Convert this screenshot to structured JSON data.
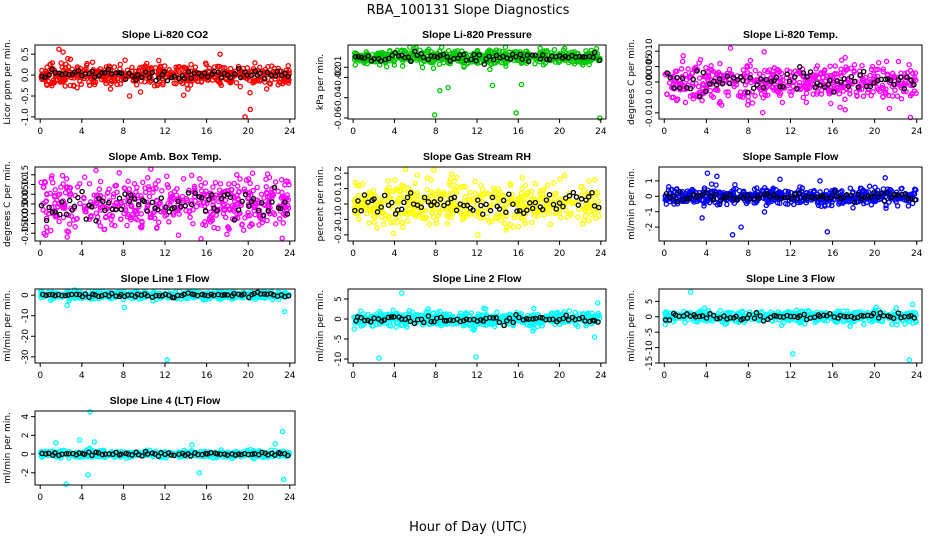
{
  "figure": {
    "title": "RBA_100131  Slope Diagnostics",
    "xlabel": "Hour of Day (UTC)"
  },
  "chart_data": [
    {
      "type": "scatter",
      "title": "Slope Li-820 CO2",
      "ylabel": "Licor ppm per min.",
      "color": "#ff0000",
      "xlim": [
        -0.5,
        24.5
      ],
      "ylim": [
        -1.05,
        0.72
      ],
      "xticks": [
        0,
        4,
        8,
        12,
        16,
        20,
        24
      ],
      "yticks": [
        -1.0,
        -0.5,
        0.0,
        0.5
      ],
      "ytick_labels": [
        "-1.0",
        "-0.5",
        "0.0",
        "0.5"
      ],
      "center": 0.0,
      "spread": 0.12,
      "outliers": [
        [
          1.8,
          0.62
        ],
        [
          2.2,
          0.55
        ],
        [
          17.3,
          0.5
        ],
        [
          19.7,
          -1.0
        ],
        [
          20.2,
          -0.82
        ],
        [
          2.9,
          0.38
        ],
        [
          11.4,
          0.35
        ],
        [
          13.8,
          -0.48
        ],
        [
          8.6,
          -0.5
        ]
      ]
    },
    {
      "type": "scatter",
      "title": "Slope Li-820 Pressure",
      "ylabel": "kPa per min.",
      "color": "#00c800",
      "xlim": [
        -0.5,
        24.5
      ],
      "ylim": [
        -0.061,
        0.012
      ],
      "xticks": [
        0,
        4,
        8,
        12,
        16,
        20,
        24
      ],
      "yticks": [
        -0.06,
        -0.04,
        -0.02,
        -0.01
      ],
      "ytick_labels": [
        "-0.06",
        "-0.04",
        "-0.02",
        "-0.01"
      ],
      "center": 0.0,
      "spread": 0.004,
      "outliers": [
        [
          7.9,
          -0.057
        ],
        [
          9.2,
          -0.03
        ],
        [
          15.8,
          -0.055
        ],
        [
          16.3,
          -0.027
        ],
        [
          23.9,
          -0.06
        ],
        [
          13.5,
          -0.028
        ],
        [
          8.4,
          -0.033
        ]
      ]
    },
    {
      "type": "scatter",
      "title": "Slope Li-820 Temp.",
      "ylabel": "degrees C per min.",
      "color": "#ff00ff",
      "xlim": [
        -0.5,
        24.5
      ],
      "ylim": [
        -0.012,
        0.012
      ],
      "xticks": [
        0,
        4,
        8,
        12,
        16,
        20,
        24
      ],
      "yticks": [
        -0.01,
        0.0,
        0.005,
        0.01
      ],
      "ytick_labels": [
        "-0.010",
        "0.000",
        "0.005",
        "0.010"
      ],
      "center": 0.0,
      "spread": 0.003,
      "outliers": [
        [
          6.3,
          0.011
        ],
        [
          1.8,
          0.0085
        ],
        [
          23.4,
          -0.0115
        ],
        [
          9.5,
          0.0098
        ],
        [
          17.2,
          -0.009
        ]
      ]
    },
    {
      "type": "scatter",
      "title": "Slope Amb. Box Temp.",
      "ylabel": "degrees C per min.",
      "color": "#ff00ff",
      "xlim": [
        -0.5,
        24.5
      ],
      "ylim": [
        -0.19,
        0.19
      ],
      "xticks": [
        0,
        4,
        8,
        12,
        16,
        20,
        24
      ],
      "yticks": [
        -0.15,
        -0.1,
        -0.05,
        0.0,
        0.05,
        0.1,
        0.15
      ],
      "ytick_labels": [
        "-0.15",
        "-0.10",
        "-0.05",
        "0.00",
        "0.05",
        "0.10",
        "0.15"
      ],
      "center": 0.0,
      "spread": 0.065,
      "outliers": [
        [
          7.6,
          0.16
        ],
        [
          2.6,
          -0.17
        ],
        [
          18.9,
          0.15
        ],
        [
          13.3,
          -0.16
        ]
      ]
    },
    {
      "type": "scatter",
      "title": "Slope Gas Stream RH",
      "ylabel": "percent per min.",
      "color": "#ffff00",
      "xlim": [
        -0.5,
        24.5
      ],
      "ylim": [
        -0.24,
        0.24
      ],
      "xticks": [
        0,
        4,
        8,
        12,
        16,
        20,
        24
      ],
      "yticks": [
        -0.2,
        -0.1,
        0.0,
        0.1,
        0.2
      ],
      "ytick_labels": [
        "-0.2",
        "-0.1",
        "0.0",
        "0.1",
        "0.2"
      ],
      "center": 0.0,
      "spread": 0.07,
      "outliers": [
        [
          7.8,
          0.22
        ],
        [
          12.1,
          -0.2
        ],
        [
          3.9,
          -0.19
        ],
        [
          16.4,
          0.17
        ]
      ]
    },
    {
      "type": "scatter",
      "title": "Slope Sample Flow",
      "ylabel": "ml/min per min.",
      "color": "#0000ff",
      "xlim": [
        -0.5,
        24.5
      ],
      "ylim": [
        -2.9,
        1.9
      ],
      "xticks": [
        0,
        4,
        8,
        12,
        16,
        20,
        24
      ],
      "yticks": [
        -2,
        -1,
        0,
        1
      ],
      "ytick_labels": [
        "-2",
        "-1",
        "0",
        "1"
      ],
      "center": 0.0,
      "spread": 0.28,
      "outliers": [
        [
          4.1,
          1.5
        ],
        [
          5.0,
          1.3
        ],
        [
          6.5,
          -2.5
        ],
        [
          7.3,
          -2.0
        ],
        [
          11.0,
          1.1
        ],
        [
          15.5,
          -2.3
        ],
        [
          14.8,
          1.0
        ],
        [
          3.6,
          -1.4
        ],
        [
          21.0,
          1.2
        ]
      ]
    },
    {
      "type": "scatter",
      "title": "Slope Line 1 Flow",
      "ylabel": "ml/min per min.",
      "color": "#00ffff",
      "xlim": [
        -0.5,
        24.5
      ],
      "ylim": [
        -33,
        3
      ],
      "xticks": [
        0,
        4,
        8,
        12,
        16,
        20,
        24
      ],
      "yticks": [
        -30,
        -20,
        -10,
        0
      ],
      "ytick_labels": [
        "-30",
        "-20",
        "-10",
        "0"
      ],
      "center": 0.0,
      "spread": 0.9,
      "outliers": [
        [
          12.2,
          -31.5
        ],
        [
          23.5,
          -8
        ],
        [
          3.3,
          2.5
        ],
        [
          2.6,
          -5
        ],
        [
          8.1,
          -6
        ]
      ]
    },
    {
      "type": "scatter",
      "title": "Slope Line 2 Flow",
      "ylabel": "ml/min per min.",
      "color": "#00ffff",
      "xlim": [
        -0.5,
        24.5
      ],
      "ylim": [
        -11,
        7.5
      ],
      "xticks": [
        0,
        4,
        8,
        12,
        16,
        20,
        24
      ],
      "yticks": [
        -10,
        -5,
        0,
        5
      ],
      "ytick_labels": [
        "-10",
        "-5",
        "0",
        "5"
      ],
      "center": 0.0,
      "spread": 0.9,
      "outliers": [
        [
          4.7,
          6.5
        ],
        [
          11.9,
          -9.5
        ],
        [
          23.4,
          -4.5
        ],
        [
          23.7,
          4
        ],
        [
          0.1,
          -2.5
        ],
        [
          2.5,
          -9.8
        ]
      ]
    },
    {
      "type": "scatter",
      "title": "Slope Line 3 Flow",
      "ylabel": "ml/min per min.",
      "color": "#00ffff",
      "xlim": [
        -0.5,
        24.5
      ],
      "ylim": [
        -15,
        9
      ],
      "xticks": [
        0,
        4,
        8,
        12,
        16,
        20,
        24
      ],
      "yticks": [
        -15,
        -10,
        -5,
        0,
        5
      ],
      "ytick_labels": [
        "-15",
        "-10",
        "-5",
        "0",
        "5"
      ],
      "center": 0.0,
      "spread": 1.0,
      "outliers": [
        [
          2.5,
          8
        ],
        [
          12.2,
          -12
        ],
        [
          23.3,
          -14
        ],
        [
          23.6,
          4
        ],
        [
          0.1,
          -2.5
        ]
      ]
    },
    {
      "type": "scatter",
      "title": "Slope Line 4 (LT) Flow",
      "ylabel": "ml/min per min.",
      "color": "#00ffff",
      "xlim": [
        -0.5,
        24.5
      ],
      "ylim": [
        -3.3,
        4.6
      ],
      "xticks": [
        0,
        4,
        8,
        12,
        16,
        20,
        24
      ],
      "yticks": [
        -2,
        0,
        2,
        4
      ],
      "ytick_labels": [
        "-2",
        "0",
        "2",
        "4"
      ],
      "center": 0.0,
      "spread": 0.18,
      "outliers": [
        [
          4.8,
          4.5
        ],
        [
          2.5,
          -3.2
        ],
        [
          3.8,
          1.5
        ],
        [
          4.6,
          -2.2
        ],
        [
          15.3,
          -2.0
        ],
        [
          23.4,
          -2.7
        ],
        [
          23.3,
          2.4
        ],
        [
          5.2,
          1.3
        ],
        [
          14.6,
          1.0
        ],
        [
          22.6,
          1.1
        ],
        [
          1.5,
          1.2
        ]
      ]
    }
  ]
}
